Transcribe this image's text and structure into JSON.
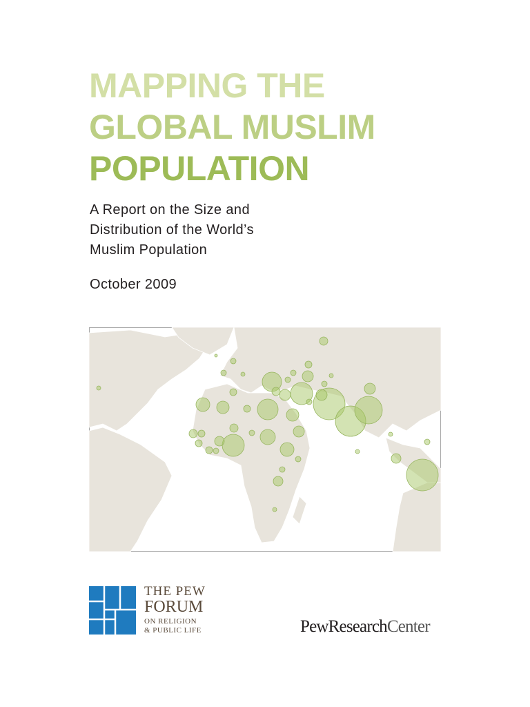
{
  "title": {
    "lines": [
      "MAPPING THE",
      "GLOBAL MUSLIM",
      "POPULATION"
    ]
  },
  "subtitle": {
    "lines": [
      "A Report on the Size and",
      "Distribution of the World’s",
      "Muslim Population"
    ]
  },
  "date": "October 2009",
  "forum_logo": {
    "lines": [
      "THE PEW",
      "FORUM",
      "ON RELIGION",
      "& PUBLIC LIFE"
    ]
  },
  "center_logo": {
    "parts": [
      "PewResearch",
      "Center"
    ]
  }
}
